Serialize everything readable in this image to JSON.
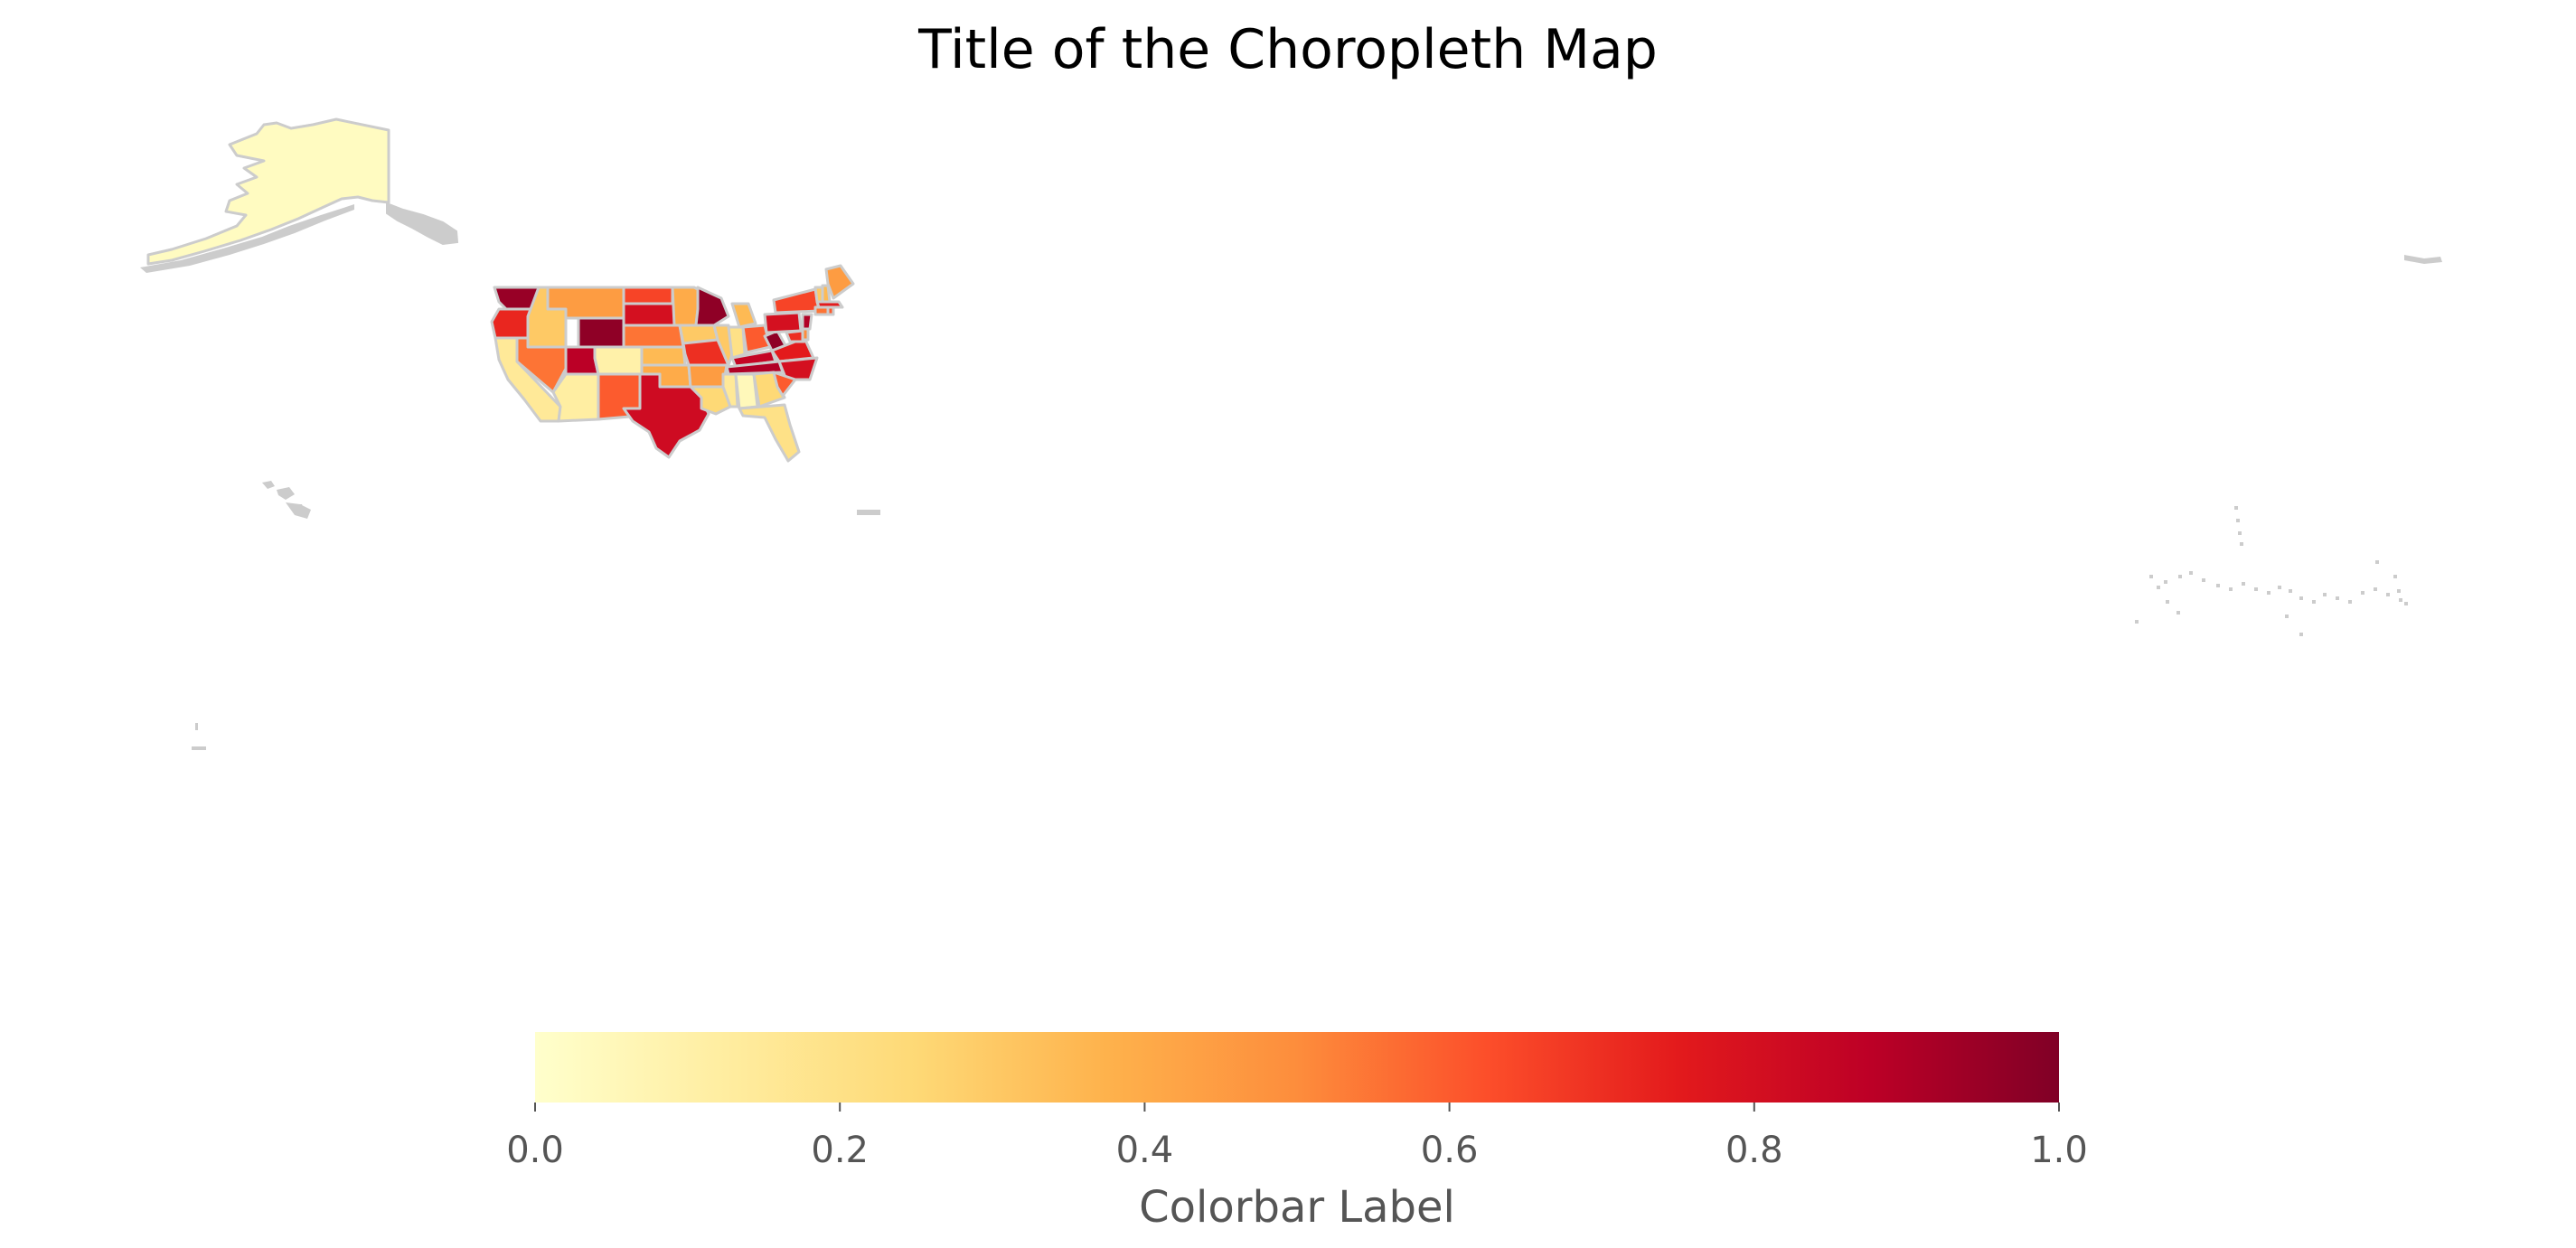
{
  "title": "Title of the Choropleth Map",
  "colormap": {
    "name": "YlOrRd",
    "stops": [
      "#ffffcc",
      "#ffeda0",
      "#fed976",
      "#feb24c",
      "#fd8d3c",
      "#fc4e2a",
      "#e31a1c",
      "#bd0026",
      "#800026"
    ]
  },
  "colors": {
    "background": "#ffffff",
    "border": "#cccccc",
    "no_data": "#cccccc",
    "tick_text": "#555555"
  },
  "colorbar": {
    "label": "Colorbar Label",
    "range": [
      0.0,
      1.0
    ],
    "ticks": [
      "0.0",
      "0.2",
      "0.4",
      "0.6",
      "0.8",
      "1.0"
    ]
  },
  "chart_data": {
    "type": "choropleth",
    "title": "Title of the Choropleth Map",
    "colorbar_label": "Colorbar Label",
    "value_range": [
      0.0,
      1.0
    ],
    "regions": [
      {
        "name": "Alaska",
        "value": 0.03
      },
      {
        "name": "Washington",
        "value": 0.95
      },
      {
        "name": "Oregon",
        "value": 0.72
      },
      {
        "name": "California",
        "value": 0.15
      },
      {
        "name": "Idaho",
        "value": 0.3
      },
      {
        "name": "Nevada",
        "value": 0.55
      },
      {
        "name": "Montana",
        "value": 0.45
      },
      {
        "name": "Wyoming",
        "value": 0.97
      },
      {
        "name": "Utah",
        "value": 0.88
      },
      {
        "name": "Arizona",
        "value": 0.12
      },
      {
        "name": "Colorado",
        "value": 0.1
      },
      {
        "name": "New Mexico",
        "value": 0.6
      },
      {
        "name": "North Dakota",
        "value": 0.65
      },
      {
        "name": "South Dakota",
        "value": 0.8
      },
      {
        "name": "Nebraska",
        "value": 0.55
      },
      {
        "name": "Kansas",
        "value": 0.35
      },
      {
        "name": "Oklahoma",
        "value": 0.4
      },
      {
        "name": "Texas",
        "value": 0.82
      },
      {
        "name": "Minnesota",
        "value": 0.4
      },
      {
        "name": "Iowa",
        "value": 0.3
      },
      {
        "name": "Missouri",
        "value": 0.7
      },
      {
        "name": "Arkansas",
        "value": 0.45
      },
      {
        "name": "Louisiana",
        "value": 0.25
      },
      {
        "name": "Wisconsin",
        "value": 0.97
      },
      {
        "name": "Illinois",
        "value": 0.3
      },
      {
        "name": "Mississippi",
        "value": 0.15
      },
      {
        "name": "Michigan",
        "value": 0.35
      },
      {
        "name": "Indiana",
        "value": 0.2
      },
      {
        "name": "Kentucky",
        "value": 0.85
      },
      {
        "name": "Tennessee",
        "value": 0.9
      },
      {
        "name": "Alabama",
        "value": 0.05
      },
      {
        "name": "Ohio",
        "value": 0.6
      },
      {
        "name": "Georgia",
        "value": 0.25
      },
      {
        "name": "Florida",
        "value": 0.2
      },
      {
        "name": "West Virginia",
        "value": 0.97
      },
      {
        "name": "Virginia",
        "value": 0.75
      },
      {
        "name": "North Carolina",
        "value": 0.8
      },
      {
        "name": "South Carolina",
        "value": 0.6
      },
      {
        "name": "Pennsylvania",
        "value": 0.8
      },
      {
        "name": "New York",
        "value": 0.65
      },
      {
        "name": "Maryland",
        "value": 0.7
      },
      {
        "name": "Delaware",
        "value": 0.5
      },
      {
        "name": "New Jersey",
        "value": 0.9
      },
      {
        "name": "Vermont",
        "value": 0.3
      },
      {
        "name": "New Hampshire",
        "value": 0.35
      },
      {
        "name": "Maine",
        "value": 0.45
      },
      {
        "name": "Massachusetts",
        "value": 0.75
      },
      {
        "name": "Connecticut",
        "value": 0.55
      },
      {
        "name": "Rhode Island",
        "value": 0.6
      }
    ]
  }
}
